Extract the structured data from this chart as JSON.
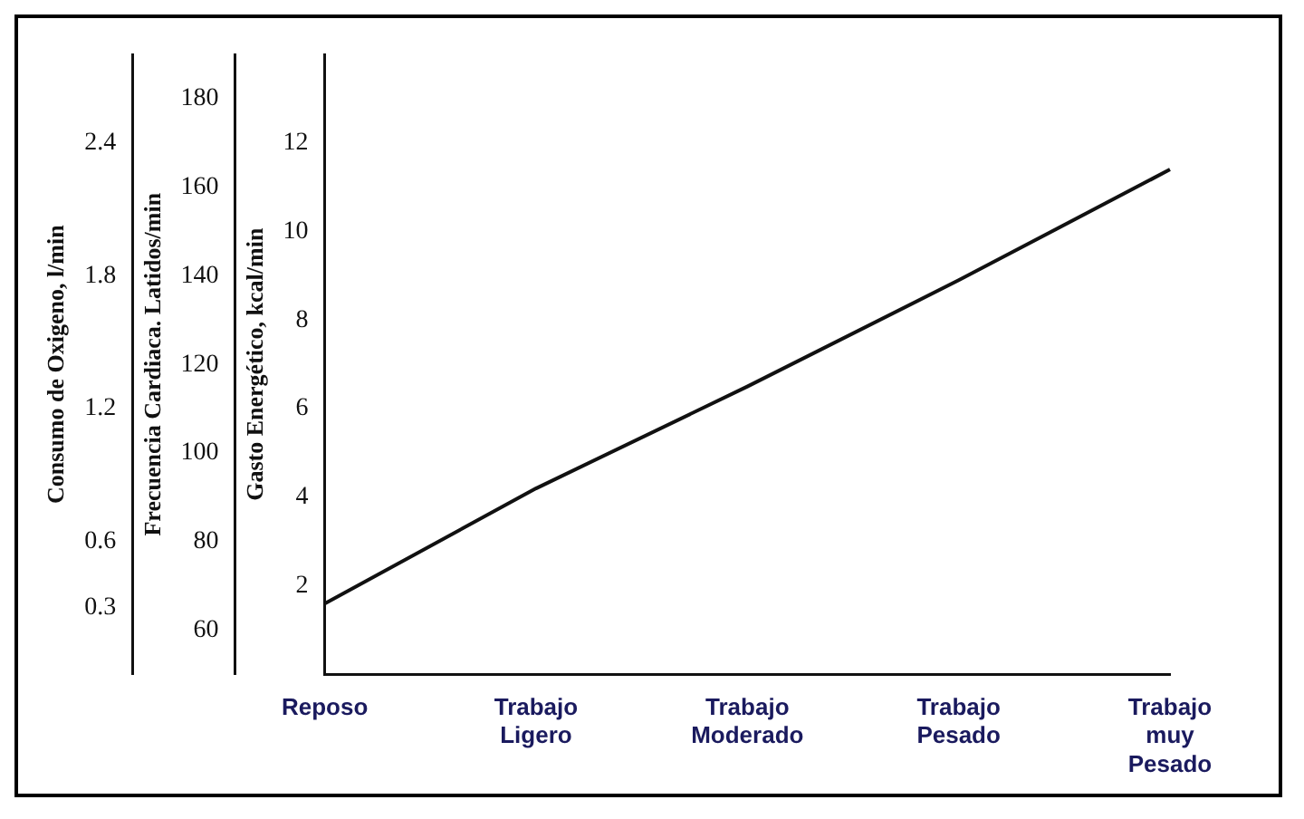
{
  "chart_data": {
    "type": "line",
    "categories": [
      "Reposo",
      "Trabajo\nLigero",
      "Trabajo\nModerado",
      "Trabajo\nPesado",
      "Trabajo\nmuy\nPesado"
    ],
    "series": [
      {
        "color": "#111111",
        "values": [
          1.6,
          4.2,
          6.5,
          8.9,
          11.4
        ]
      }
    ],
    "ylabel": "Gasto Energético, kcal/min",
    "ylim": [
      0,
      14
    ],
    "yticks": [
      2,
      4,
      6,
      8,
      10,
      12
    ],
    "y2label": "Frecuencia Cardiaca. Latidos/min",
    "y2lim": [
      50,
      190
    ],
    "y2ticks": [
      60,
      80,
      100,
      120,
      140,
      160,
      180
    ],
    "y3label": "Consumo de Oxigeno, l/min",
    "y3lim": [
      0,
      2.8
    ],
    "y3ticks": [
      0.3,
      0.6,
      1.2,
      1.8,
      2.4
    ],
    "grid": false,
    "legend": false,
    "marker": "none",
    "line_style": "solid"
  }
}
